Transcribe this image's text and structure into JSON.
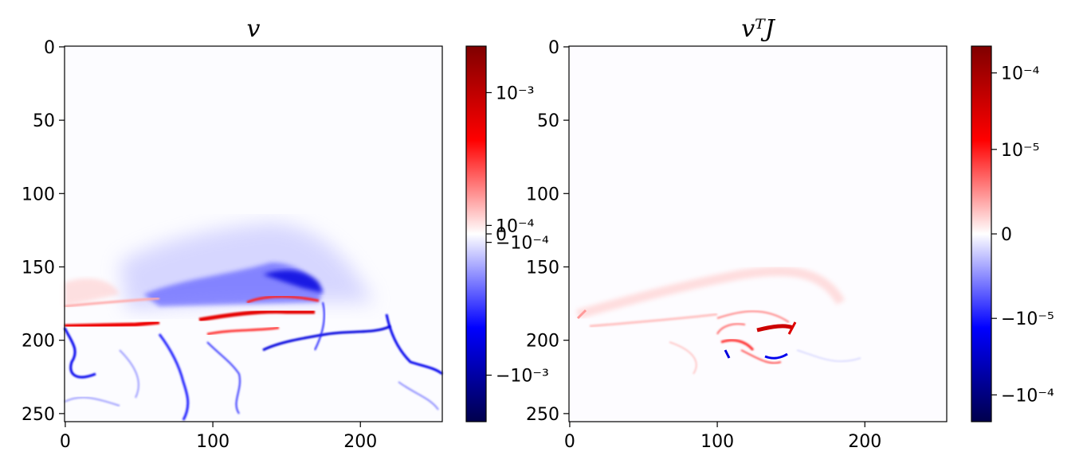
{
  "chart_data": [
    {
      "type": "heatmap",
      "title": "v",
      "image_size": [
        256,
        256
      ],
      "x_ticks": [
        0,
        100,
        200
      ],
      "y_ticks": [
        0,
        50,
        100,
        150,
        200,
        250
      ],
      "colormap": "seismic",
      "colormap_colors": [
        "#00004c",
        "#0000ff",
        "#ffffff",
        "#ff0000",
        "#800000"
      ],
      "color_scale": "symlog",
      "colorbar_ticks": [
        {
          "label": "10⁻³",
          "value": 0.001
        },
        {
          "label": "10⁻⁴",
          "value": 0.0001
        },
        {
          "label": "0",
          "value": 0
        },
        {
          "label": "−10⁻⁴",
          "value": -0.0001
        },
        {
          "label": "−10⁻³",
          "value": -0.001
        }
      ]
    },
    {
      "type": "heatmap",
      "title": "vᵀJ",
      "image_size": [
        256,
        256
      ],
      "x_ticks": [
        0,
        100,
        200
      ],
      "y_ticks": [
        0,
        50,
        100,
        150,
        200,
        250
      ],
      "colormap": "seismic",
      "colormap_colors": [
        "#00004c",
        "#0000ff",
        "#ffffff",
        "#ff0000",
        "#800000"
      ],
      "color_scale": "symlog",
      "colorbar_ticks": [
        {
          "label": "10⁻⁴",
          "value": 0.0001
        },
        {
          "label": "10⁻⁵",
          "value": 1e-05
        },
        {
          "label": "0",
          "value": 0
        },
        {
          "label": "−10⁻⁵",
          "value": -1e-05
        },
        {
          "label": "−10⁻⁴",
          "value": -0.0001
        }
      ]
    }
  ]
}
